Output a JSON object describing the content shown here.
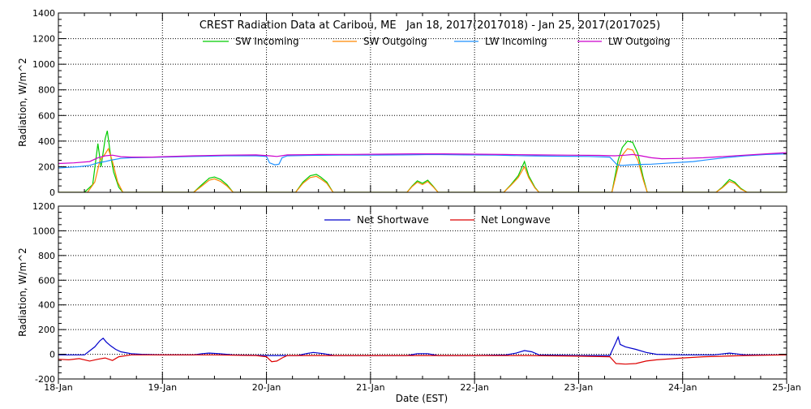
{
  "chart_data": [
    {
      "type": "line",
      "title": "CREST Radiation Data at Caribou, ME   Jan 18, 2017(2017018) - Jan 25, 2017(2017025)",
      "xlabel": "",
      "ylabel": "Radiation, W/m^2",
      "ylim": [
        0,
        1400
      ],
      "xlim": [
        18,
        25
      ],
      "yticks": [
        "0",
        "200",
        "400",
        "600",
        "800",
        "1000",
        "1200",
        "1400"
      ],
      "grid": true,
      "legend_position": "top",
      "series": [
        {
          "name": "SW Incoming",
          "color": "#00cc00",
          "points": [
            [
              18.0,
              0
            ],
            [
              18.25,
              0
            ],
            [
              18.33,
              60
            ],
            [
              18.38,
              380
            ],
            [
              18.41,
              200
            ],
            [
              18.45,
              420
            ],
            [
              18.47,
              480
            ],
            [
              18.5,
              300
            ],
            [
              18.53,
              160
            ],
            [
              18.58,
              40
            ],
            [
              18.62,
              0
            ],
            [
              19.3,
              0
            ],
            [
              19.38,
              60
            ],
            [
              19.45,
              110
            ],
            [
              19.5,
              120
            ],
            [
              19.56,
              100
            ],
            [
              19.62,
              60
            ],
            [
              19.68,
              0
            ],
            [
              20.28,
              0
            ],
            [
              20.35,
              80
            ],
            [
              20.42,
              130
            ],
            [
              20.48,
              140
            ],
            [
              20.52,
              120
            ],
            [
              20.58,
              80
            ],
            [
              20.64,
              0
            ],
            [
              21.35,
              0
            ],
            [
              21.4,
              50
            ],
            [
              21.45,
              90
            ],
            [
              21.5,
              70
            ],
            [
              21.55,
              95
            ],
            [
              21.6,
              50
            ],
            [
              21.65,
              0
            ],
            [
              22.28,
              0
            ],
            [
              22.35,
              60
            ],
            [
              22.42,
              130
            ],
            [
              22.48,
              240
            ],
            [
              22.52,
              130
            ],
            [
              22.58,
              40
            ],
            [
              22.62,
              0
            ],
            [
              23.32,
              0
            ],
            [
              23.38,
              250
            ],
            [
              23.42,
              350
            ],
            [
              23.47,
              400
            ],
            [
              23.52,
              390
            ],
            [
              23.57,
              300
            ],
            [
              23.62,
              120
            ],
            [
              23.66,
              0
            ],
            [
              24.32,
              0
            ],
            [
              24.38,
              40
            ],
            [
              24.45,
              100
            ],
            [
              24.5,
              80
            ],
            [
              24.56,
              30
            ],
            [
              24.62,
              0
            ],
            [
              25.0,
              0
            ]
          ]
        },
        {
          "name": "SW Outgoing",
          "color": "#ff8800",
          "points": [
            [
              18.0,
              0
            ],
            [
              18.28,
              0
            ],
            [
              18.35,
              80
            ],
            [
              18.4,
              250
            ],
            [
              18.45,
              300
            ],
            [
              18.48,
              340
            ],
            [
              18.52,
              240
            ],
            [
              18.57,
              80
            ],
            [
              18.62,
              0
            ],
            [
              19.3,
              0
            ],
            [
              19.38,
              50
            ],
            [
              19.45,
              95
            ],
            [
              19.5,
              105
            ],
            [
              19.56,
              85
            ],
            [
              19.62,
              50
            ],
            [
              19.68,
              0
            ],
            [
              20.28,
              0
            ],
            [
              20.35,
              70
            ],
            [
              20.42,
              115
            ],
            [
              20.48,
              125
            ],
            [
              20.52,
              105
            ],
            [
              20.58,
              70
            ],
            [
              20.64,
              0
            ],
            [
              21.35,
              0
            ],
            [
              21.4,
              45
            ],
            [
              21.45,
              80
            ],
            [
              21.5,
              60
            ],
            [
              21.55,
              85
            ],
            [
              21.6,
              45
            ],
            [
              21.65,
              0
            ],
            [
              22.28,
              0
            ],
            [
              22.35,
              55
            ],
            [
              22.42,
              115
            ],
            [
              22.48,
              200
            ],
            [
              22.52,
              115
            ],
            [
              22.58,
              35
            ],
            [
              22.62,
              0
            ],
            [
              23.32,
              0
            ],
            [
              23.38,
              200
            ],
            [
              23.42,
              290
            ],
            [
              23.47,
              340
            ],
            [
              23.52,
              330
            ],
            [
              23.57,
              250
            ],
            [
              23.62,
              100
            ],
            [
              23.66,
              0
            ],
            [
              24.32,
              0
            ],
            [
              24.38,
              35
            ],
            [
              24.45,
              85
            ],
            [
              24.5,
              70
            ],
            [
              24.56,
              25
            ],
            [
              24.62,
              0
            ],
            [
              25.0,
              0
            ]
          ]
        },
        {
          "name": "LW Incoming",
          "color": "#1e90ff",
          "points": [
            [
              18.0,
              190
            ],
            [
              18.1,
              195
            ],
            [
              18.2,
              200
            ],
            [
              18.3,
              210
            ],
            [
              18.38,
              230
            ],
            [
              18.45,
              240
            ],
            [
              18.5,
              250
            ],
            [
              18.6,
              265
            ],
            [
              18.7,
              270
            ],
            [
              18.8,
              272
            ],
            [
              19.0,
              275
            ],
            [
              19.3,
              280
            ],
            [
              19.6,
              285
            ],
            [
              19.9,
              285
            ],
            [
              20.0,
              280
            ],
            [
              20.03,
              230
            ],
            [
              20.08,
              215
            ],
            [
              20.12,
              220
            ],
            [
              20.15,
              270
            ],
            [
              20.2,
              285
            ],
            [
              20.4,
              288
            ],
            [
              20.7,
              290
            ],
            [
              21.0,
              290
            ],
            [
              21.3,
              292
            ],
            [
              21.6,
              295
            ],
            [
              21.9,
              292
            ],
            [
              22.2,
              290
            ],
            [
              22.5,
              285
            ],
            [
              22.8,
              282
            ],
            [
              23.1,
              280
            ],
            [
              23.3,
              275
            ],
            [
              23.37,
              215
            ],
            [
              23.42,
              210
            ],
            [
              23.5,
              215
            ],
            [
              23.6,
              218
            ],
            [
              23.7,
              220
            ],
            [
              23.9,
              230
            ],
            [
              24.1,
              240
            ],
            [
              24.25,
              255
            ],
            [
              24.4,
              270
            ],
            [
              24.6,
              285
            ],
            [
              24.8,
              295
            ],
            [
              25.0,
              300
            ]
          ]
        },
        {
          "name": "LW Outgoing",
          "color": "#cc00cc",
          "points": [
            [
              18.0,
              225
            ],
            [
              18.15,
              230
            ],
            [
              18.3,
              240
            ],
            [
              18.38,
              270
            ],
            [
              18.45,
              285
            ],
            [
              18.52,
              290
            ],
            [
              18.6,
              278
            ],
            [
              18.7,
              275
            ],
            [
              18.9,
              275
            ],
            [
              19.0,
              278
            ],
            [
              19.3,
              285
            ],
            [
              19.6,
              290
            ],
            [
              19.9,
              292
            ],
            [
              20.03,
              285
            ],
            [
              20.1,
              280
            ],
            [
              20.2,
              292
            ],
            [
              20.5,
              295
            ],
            [
              20.8,
              296
            ],
            [
              21.1,
              298
            ],
            [
              21.4,
              300
            ],
            [
              21.7,
              300
            ],
            [
              22.0,
              298
            ],
            [
              22.3,
              295
            ],
            [
              22.6,
              292
            ],
            [
              22.9,
              290
            ],
            [
              23.2,
              288
            ],
            [
              23.35,
              285
            ],
            [
              23.45,
              290
            ],
            [
              23.52,
              295
            ],
            [
              23.6,
              285
            ],
            [
              23.7,
              270
            ],
            [
              23.8,
              262
            ],
            [
              24.0,
              265
            ],
            [
              24.2,
              270
            ],
            [
              24.4,
              280
            ],
            [
              24.6,
              290
            ],
            [
              24.8,
              300
            ],
            [
              25.0,
              310
            ]
          ]
        }
      ]
    },
    {
      "type": "line",
      "title": "",
      "xlabel": "Date (EST)",
      "ylabel": "Radiation, W/m^2",
      "ylim": [
        -200,
        1200
      ],
      "xlim": [
        18,
        25
      ],
      "yticks": [
        "-200",
        "0",
        "200",
        "400",
        "600",
        "800",
        "1000",
        "1200"
      ],
      "grid": true,
      "legend_position": "top",
      "categories": [
        "18-Jan",
        "19-Jan",
        "20-Jan",
        "21-Jan",
        "22-Jan",
        "23-Jan",
        "24-Jan",
        "25-Jan"
      ],
      "series": [
        {
          "name": "Net Shortwave",
          "color": "#0000cc",
          "points": [
            [
              18.0,
              -5
            ],
            [
              18.25,
              -5
            ],
            [
              18.35,
              60
            ],
            [
              18.4,
              110
            ],
            [
              18.43,
              130
            ],
            [
              18.46,
              100
            ],
            [
              18.5,
              70
            ],
            [
              18.55,
              40
            ],
            [
              18.6,
              20
            ],
            [
              18.7,
              5
            ],
            [
              18.8,
              0
            ],
            [
              19.0,
              -5
            ],
            [
              19.3,
              -5
            ],
            [
              19.38,
              5
            ],
            [
              19.45,
              10
            ],
            [
              19.55,
              5
            ],
            [
              19.68,
              -5
            ],
            [
              20.0,
              -10
            ],
            [
              20.3,
              -10
            ],
            [
              20.38,
              5
            ],
            [
              20.45,
              15
            ],
            [
              20.55,
              5
            ],
            [
              20.65,
              -10
            ],
            [
              21.0,
              -10
            ],
            [
              21.35,
              -10
            ],
            [
              21.45,
              5
            ],
            [
              21.55,
              5
            ],
            [
              21.65,
              -10
            ],
            [
              22.0,
              -10
            ],
            [
              22.3,
              -5
            ],
            [
              22.4,
              10
            ],
            [
              22.48,
              30
            ],
            [
              22.55,
              20
            ],
            [
              22.62,
              -5
            ],
            [
              23.0,
              -10
            ],
            [
              23.3,
              -10
            ],
            [
              23.36,
              100
            ],
            [
              23.38,
              140
            ],
            [
              23.4,
              80
            ],
            [
              23.45,
              60
            ],
            [
              23.55,
              40
            ],
            [
              23.65,
              15
            ],
            [
              23.75,
              0
            ],
            [
              24.0,
              -5
            ],
            [
              24.3,
              -5
            ],
            [
              24.45,
              10
            ],
            [
              24.5,
              5
            ],
            [
              24.6,
              -5
            ],
            [
              25.0,
              -5
            ]
          ]
        },
        {
          "name": "Net Longwave",
          "color": "#dd0000",
          "points": [
            [
              18.0,
              -40
            ],
            [
              18.1,
              -45
            ],
            [
              18.2,
              -35
            ],
            [
              18.3,
              -55
            ],
            [
              18.38,
              -40
            ],
            [
              18.45,
              -30
            ],
            [
              18.52,
              -50
            ],
            [
              18.58,
              -20
            ],
            [
              18.7,
              -5
            ],
            [
              19.0,
              -5
            ],
            [
              19.5,
              -5
            ],
            [
              19.9,
              -10
            ],
            [
              20.0,
              -20
            ],
            [
              20.05,
              -60
            ],
            [
              20.1,
              -55
            ],
            [
              20.15,
              -30
            ],
            [
              20.2,
              -10
            ],
            [
              20.5,
              -10
            ],
            [
              21.0,
              -10
            ],
            [
              21.5,
              -10
            ],
            [
              22.0,
              -10
            ],
            [
              22.5,
              -10
            ],
            [
              23.0,
              -15
            ],
            [
              23.3,
              -20
            ],
            [
              23.36,
              -75
            ],
            [
              23.45,
              -80
            ],
            [
              23.55,
              -75
            ],
            [
              23.65,
              -55
            ],
            [
              23.75,
              -45
            ],
            [
              24.0,
              -30
            ],
            [
              24.2,
              -20
            ],
            [
              24.4,
              -15
            ],
            [
              24.6,
              -10
            ],
            [
              25.0,
              -5
            ]
          ]
        }
      ]
    }
  ]
}
